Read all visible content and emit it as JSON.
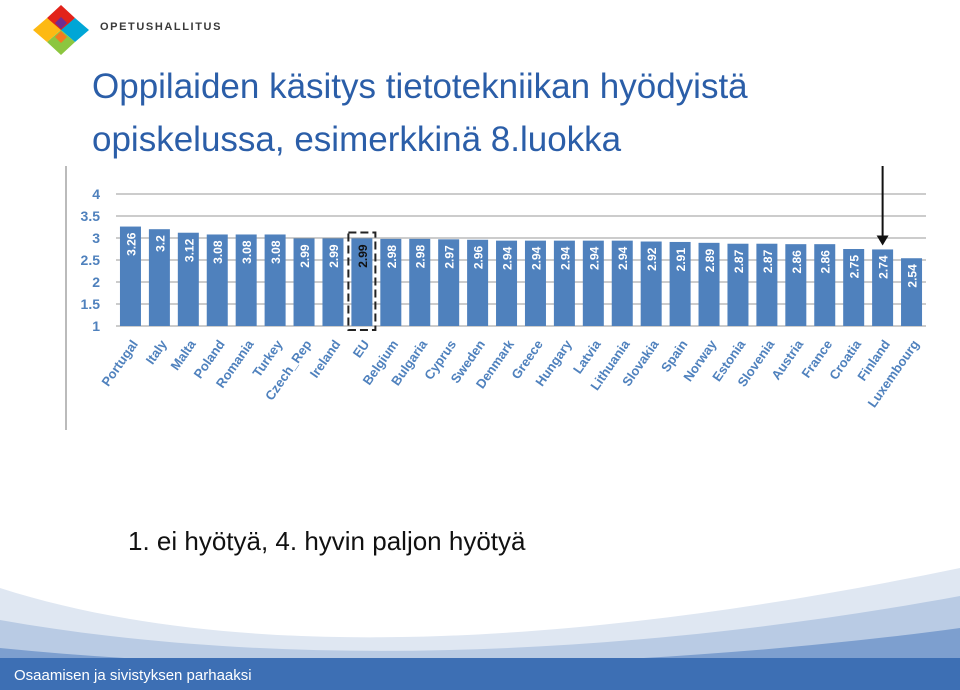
{
  "header": {
    "logo_text": "OPETUSHALLITUS",
    "logo_colors": [
      "#e2231a",
      "#6f2c91",
      "#00a6d6",
      "#8cc63f",
      "#fdb913",
      "#f47920"
    ]
  },
  "slide": {
    "title_line1": "Oppilaiden käsitys tietotekniikan hyödyistä",
    "title_line2": "opiskelussa, esimerkkinä 8.luokka",
    "caption": "1. ei hyötyä, 4. hyvin paljon hyötyä",
    "title_color": "#2b5ea8"
  },
  "chart_data": {
    "type": "bar",
    "categories": [
      "Portugal",
      "Italy",
      "Malta",
      "Poland",
      "Romania",
      "Turkey",
      "Czech_Rep",
      "Ireland",
      "EU",
      "Belgium",
      "Bulgaria",
      "Cyprus",
      "Sweden",
      "Denmark",
      "Greece",
      "Hungary",
      "Latvia",
      "Lithuania",
      "Slovakia",
      "Spain",
      "Norway",
      "Estonia",
      "Slovenia",
      "Austria",
      "France",
      "Croatia",
      "Finland",
      "Luxembourg"
    ],
    "values": [
      3.26,
      3.2,
      3.12,
      3.08,
      3.08,
      3.08,
      2.99,
      2.99,
      2.99,
      2.98,
      2.98,
      2.97,
      2.96,
      2.94,
      2.94,
      2.94,
      2.94,
      2.94,
      2.92,
      2.91,
      2.89,
      2.87,
      2.87,
      2.86,
      2.86,
      2.75,
      2.74,
      2.54
    ],
    "value_labels": [
      "3.26",
      "3.2",
      "3.12",
      "3.08",
      "3.08",
      "3.08",
      "2.99",
      "2.99",
      "2.99",
      "2.98",
      "2.98",
      "2.97",
      "2.96",
      "2.94",
      "2.94",
      "2.94",
      "2.94",
      "2.94",
      "2.92",
      "2.91",
      "2.89",
      "2.87",
      "2.87",
      "2.86",
      "2.86",
      "2.75",
      "2.74",
      "2.54"
    ],
    "yticks": [
      "1",
      "1.5",
      "2",
      "2.5",
      "3",
      "3.5",
      "4"
    ],
    "ylim": [
      1,
      4
    ],
    "highlight": "EU",
    "arrow_target": "Finland",
    "bar_color": "#4f81bd",
    "grid": true
  },
  "footer": {
    "text": "Osaamisen ja sivistyksen parhaaksi",
    "band_color": "#3d6fb4"
  }
}
